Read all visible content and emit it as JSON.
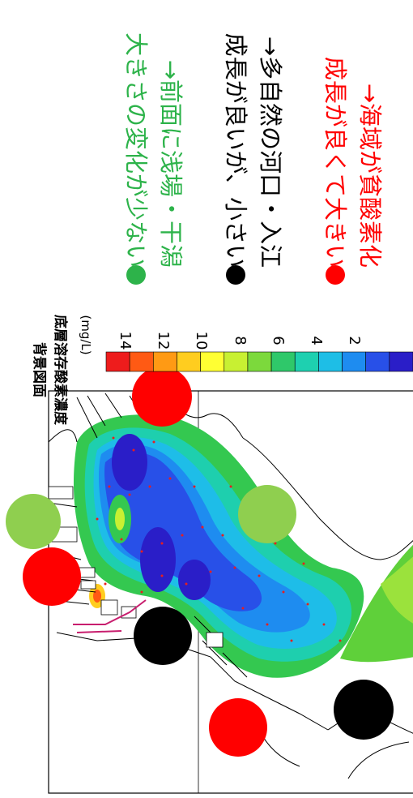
{
  "legend": {
    "title_line1": "背景図面",
    "title_line2": "底層溶存酸素濃度",
    "unit": "(mg/L)",
    "ticks": [
      "14",
      "12",
      "10",
      "8",
      "6",
      "4",
      "2"
    ],
    "colors": [
      "#ee1c1c",
      "#ff5a14",
      "#ff9a14",
      "#ffcd1f",
      "#ffff33",
      "#c8f032",
      "#7cd93c",
      "#2fc86a",
      "#1ed0b0",
      "#1ebee6",
      "#1e8cf0",
      "#2850e8",
      "#2a1ec8"
    ]
  },
  "notes": [
    {
      "marker_color": "#2db34a",
      "text_color": "#2db34a",
      "line1": "大きさの変化が少ない",
      "line2": "→前面に浅場・干潟"
    },
    {
      "marker_color": "#000000",
      "text_color": "#000000",
      "line1": "成長が良いが、小さい",
      "line2": "→多自然の河口・入江"
    },
    {
      "marker_color": "#ff0000",
      "text_color": "#ff0000",
      "line1": "成長が良くて大きい",
      "line2": "→海域が貧酸素化"
    }
  ],
  "sites": [
    {
      "type": "red",
      "color": "#ff0000"
    },
    {
      "type": "green",
      "color": "#8fcf4f"
    },
    {
      "type": "green",
      "color": "#8fcf4f"
    },
    {
      "type": "red",
      "color": "#ff0000"
    },
    {
      "type": "black",
      "color": "#000000"
    },
    {
      "type": "red",
      "color": "#ff0000"
    },
    {
      "type": "black",
      "color": "#000000"
    }
  ]
}
